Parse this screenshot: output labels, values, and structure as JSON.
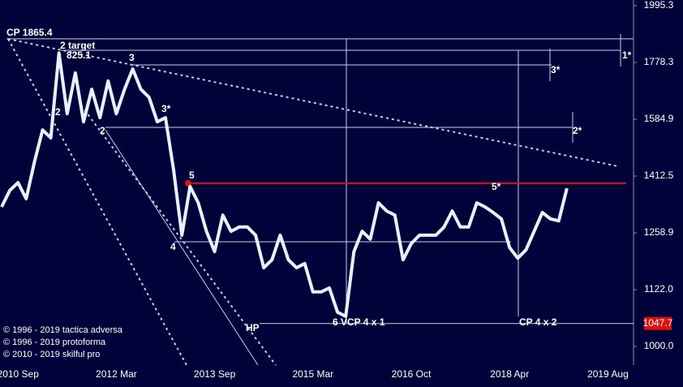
{
  "chart_data": {
    "type": "line",
    "categories": [
      null,
      null,
      "2010 Sep",
      null,
      null,
      null,
      null,
      null,
      null,
      null,
      null,
      null,
      null,
      null,
      "2012 Mar",
      null,
      null,
      null,
      null,
      null,
      null,
      null,
      null,
      null,
      null,
      null,
      "2013 Sep",
      null,
      null,
      null,
      null,
      null,
      null,
      null,
      null,
      null,
      null,
      null,
      "2015 Mar",
      null,
      null,
      null,
      null,
      null,
      null,
      null,
      null,
      null,
      null,
      null,
      "2016 Oct",
      null,
      null,
      null,
      null,
      null,
      null,
      null,
      null,
      null,
      null,
      null,
      "2018 Apr",
      null,
      null,
      null,
      null,
      null,
      null,
      null,
      null,
      null,
      null,
      null,
      "2019 Aug"
    ],
    "series": [
      {
        "color": "#e8f2ff",
        "values": [
          1327,
          1372,
          1394,
          1349,
          1453,
          1551,
          1526,
          1813,
          1603,
          1741,
          1577,
          1684,
          1590,
          1713,
          1603,
          1684,
          1755,
          1684,
          1657,
          1577,
          1590,
          1429,
          1253,
          1383,
          1338,
          1263,
          1212,
          1305,
          1263,
          1274,
          1274,
          1253,
          1173,
          1192,
          1253,
          1192,
          1173,
          1183,
          1117,
          1117,
          1126,
          1072,
          1063,
          1212,
          1263,
          1243,
          1338,
          1316,
          1305,
          1192,
          1232,
          1253,
          1253,
          1253,
          1274,
          1316,
          1274,
          1274,
          1338,
          1327,
          1312,
          1295,
          1222,
          1196,
          1216,
          1263,
          1312,
          1295,
          1290,
          1378,
          null,
          null,
          null,
          null,
          null
        ]
      }
    ],
    "log_scale": true,
    "ylim": [
      921.1,
      2018.4
    ],
    "yticks": [
      {
        "value": 1000,
        "label": "1000.0"
      },
      {
        "value": 1122,
        "label": "1122.0"
      },
      1258.9,
      1412.5,
      1584.9,
      1778.3,
      1995.3
    ],
    "red_level": 1392,
    "price_marker": 1047.7,
    "cp_level": 1865.4,
    "annotations": [
      "CP 1865.4",
      "2 target",
      "825.1",
      "3",
      "2",
      "2",
      "3*",
      "4",
      "5",
      "5*",
      "HP",
      "6 VCP 4 x 1",
      "CP 4 x 2",
      "3*",
      "2*",
      "1*"
    ],
    "copyright": [
      "© 1996 - 2019 tactica adversa",
      "© 1996 - 2019 protoforma",
      "© 2010 - 2019 skilful pro"
    ]
  }
}
